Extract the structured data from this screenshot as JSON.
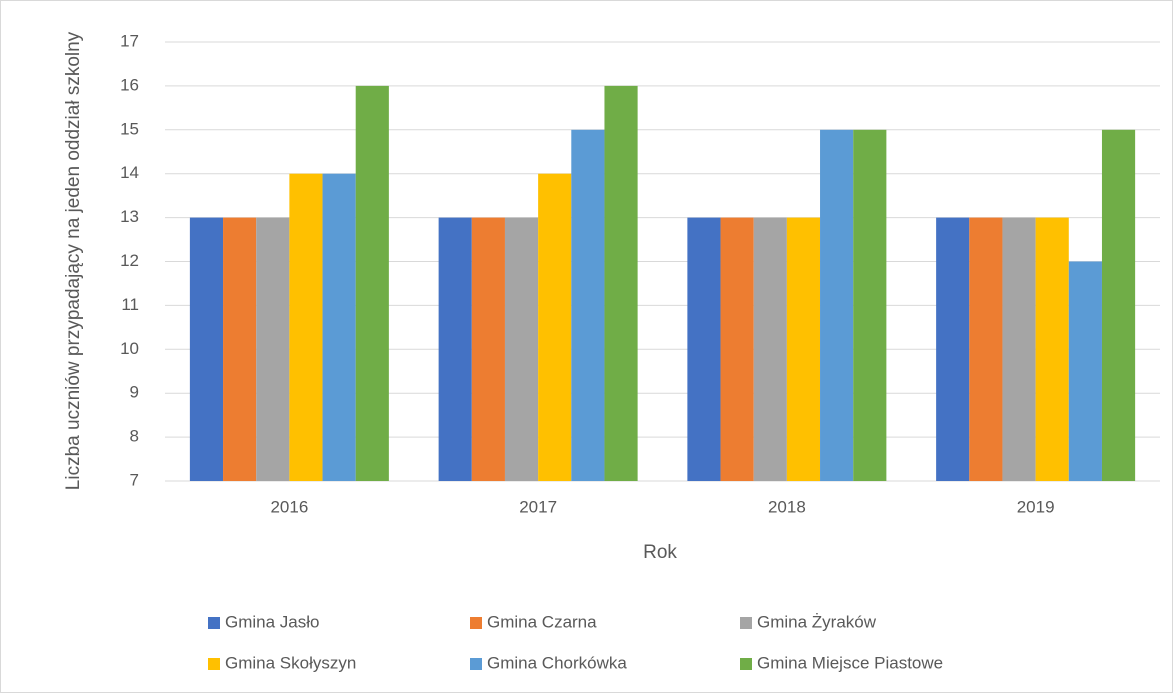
{
  "chart_data": {
    "type": "bar",
    "xlabel": "Rok",
    "ylabel": "Liczba uczniów przypadający na jeden oddział szkolny",
    "categories": [
      "2016",
      "2017",
      "2018",
      "2019"
    ],
    "series": [
      {
        "name": "Gmina Jasło",
        "color": "#4472c4",
        "values": [
          13,
          13,
          13,
          13
        ]
      },
      {
        "name": "Gmina Czarna",
        "color": "#ed7d31",
        "values": [
          13,
          13,
          13,
          13
        ]
      },
      {
        "name": "Gmina Żyraków",
        "color": "#a5a5a5",
        "values": [
          13,
          13,
          13,
          13
        ]
      },
      {
        "name": "Gmina Skołyszyn",
        "color": "#ffc000",
        "values": [
          14,
          14,
          13,
          13
        ]
      },
      {
        "name": "Gmina Chorkówka",
        "color": "#5b9bd5",
        "values": [
          14,
          15,
          15,
          12
        ]
      },
      {
        "name": "Gmina Miejsce Piastowe",
        "color": "#70ad47",
        "values": [
          16,
          16,
          15,
          15
        ]
      }
    ],
    "ylim": [
      7,
      17
    ],
    "yticks": [
      7,
      8,
      9,
      10,
      11,
      12,
      13,
      14,
      15,
      16,
      17
    ],
    "grid": true,
    "legend": "bottom"
  }
}
